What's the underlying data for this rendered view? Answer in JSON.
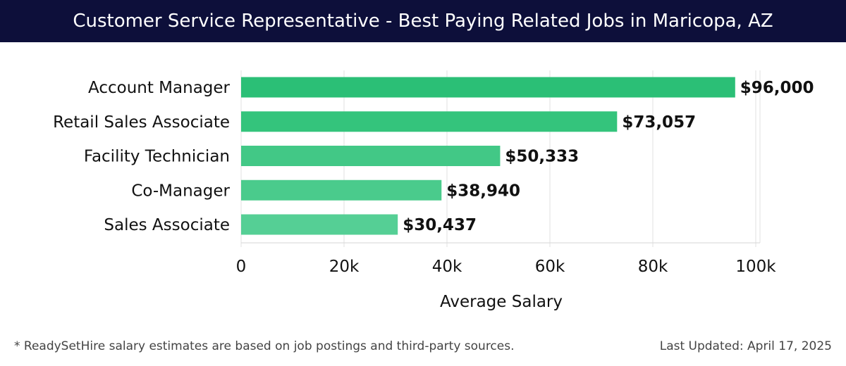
{
  "title": "Customer Service Representative - Best Paying Related Jobs in Maricopa, AZ",
  "footer": {
    "note": "* ReadySetHire salary estimates are based on job postings and third-party sources.",
    "updated": "Last Updated: April 17, 2025"
  },
  "chart_data": {
    "type": "bar",
    "orientation": "horizontal",
    "categories": [
      "Account Manager",
      "Retail Sales Associate",
      "Facility Technician",
      "Co-Manager",
      "Sales Associate"
    ],
    "values": [
      96000,
      73057,
      50333,
      38940,
      30437
    ],
    "value_labels": [
      "$96,000",
      "$73,057",
      "$50,333",
      "$38,940",
      "$30,437"
    ],
    "xlabel": "Average Salary",
    "ylabel": "",
    "xlim": [
      0,
      100000
    ],
    "x_ticks": [
      0,
      20000,
      40000,
      60000,
      80000,
      100000
    ],
    "x_tick_labels": [
      "0",
      "20k",
      "40k",
      "60k",
      "80k",
      "100k"
    ],
    "grid": true,
    "colors": [
      "#2bbf76",
      "#34c47c",
      "#42c886",
      "#4acb8c",
      "#55cf95"
    ]
  }
}
